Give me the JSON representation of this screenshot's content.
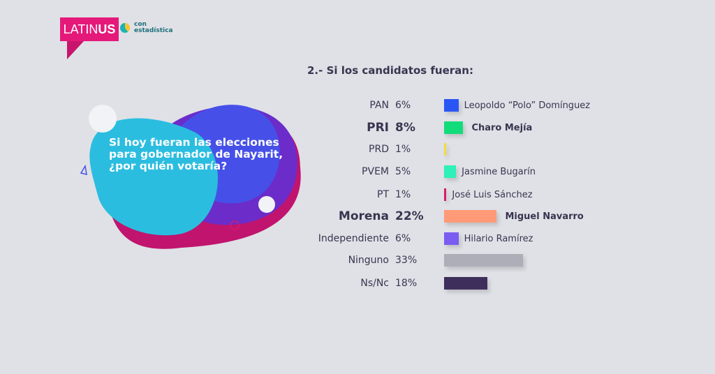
{
  "logo": {
    "brand_light": "LATIN",
    "brand_bold": "US",
    "partner_1": "con",
    "partner_2": "estadística"
  },
  "question": "Si hoy fueran las elecciones para gobernador de Nayarit, ¿por quién votaría?",
  "chart_data": {
    "type": "bar",
    "title": "2.- Si los candidatos fueran:",
    "unit": "%",
    "categories": [
      "PAN",
      "PRI",
      "PRD",
      "PVEM",
      "PT",
      "Morena",
      "Independiente",
      "Ninguno",
      "Ns/Nc"
    ],
    "values": [
      6,
      8,
      1,
      5,
      1,
      22,
      6,
      33,
      18
    ],
    "value_labels": [
      "6%",
      "8%",
      "1%",
      "5%",
      "1%",
      "22%",
      "6%",
      "33%",
      "18%"
    ],
    "candidates": [
      "Leopoldo “Polo” Domínguez",
      "Charo Mejía",
      "",
      "Jasmine Bugarín",
      "José Luis Sánchez",
      "Miguel Navarro",
      "Hilario Ramírez",
      "",
      ""
    ],
    "colors": [
      "#2a55f5",
      "#12dc7a",
      "#f2dd3a",
      "#2ef0b8",
      "#d81b6a",
      "#ff9a78",
      "#7b5cf0",
      "#aeaeb8",
      "#3e2e5c"
    ],
    "highlighted": [
      false,
      true,
      false,
      false,
      false,
      true,
      false,
      false,
      false
    ]
  }
}
